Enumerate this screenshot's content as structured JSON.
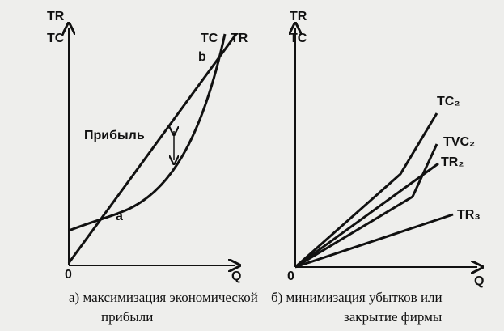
{
  "left": {
    "y_axis_label": [
      "TR",
      "TC"
    ],
    "origin": "0",
    "x_axis_label": "Q",
    "curve_labels": [
      "TC",
      "TR"
    ],
    "point_b": "b",
    "point_a": "a",
    "profit": "Прибыль",
    "caption": [
      "а) максимизация экономической",
      "прибыли"
    ]
  },
  "right": {
    "y_axis_label": [
      "TR",
      "TC"
    ],
    "origin": "0",
    "x_axis_label": "Q",
    "curve_labels": [
      "TC₂",
      "TVC₂",
      "TR₂",
      "TR₃"
    ],
    "caption": [
      "б) минимизация убытков или",
      "закрытие фирмы"
    ]
  }
}
